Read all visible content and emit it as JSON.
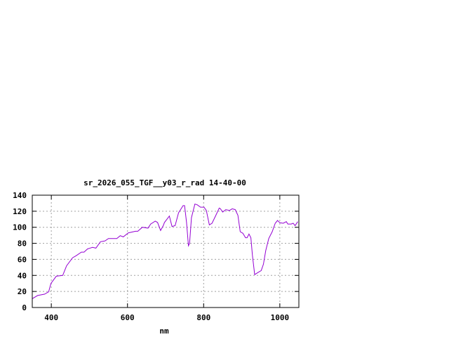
{
  "chart_data": {
    "type": "line",
    "title": "sr_2026_055_TGF__y03_r_rad 14-40-00",
    "xlabel": "nm",
    "ylabel": "",
    "xlim": [
      350,
      1050
    ],
    "ylim": [
      0,
      140
    ],
    "xticks": [
      400,
      600,
      800,
      1000
    ],
    "yticks": [
      0,
      20,
      40,
      60,
      80,
      100,
      120,
      140
    ],
    "grid": true,
    "line_color": "#9400d3",
    "series": [
      {
        "x": [
          350,
          364,
          382,
          393,
          399,
          413,
          430,
          440,
          456,
          465,
          479,
          486,
          495,
          508,
          517,
          529,
          541,
          550,
          572,
          581,
          589,
          602,
          621,
          627,
          639,
          654,
          661,
          673,
          679,
          687,
          694,
          697,
          710,
          717,
          725,
          734,
          746,
          750,
          755,
          760,
          763,
          768,
          777,
          783,
          792,
          801,
          807,
          815,
          822,
          832,
          841,
          844,
          850,
          858,
          868,
          875,
          883,
          890,
          896,
          903,
          910,
          914,
          919,
          924,
          928,
          934,
          942,
          951,
          957,
          963,
          971,
          980,
          988,
          994,
          1000,
          1009,
          1017,
          1021,
          1030,
          1035,
          1040,
          1047
        ],
        "y": [
          11,
          15,
          16.6,
          19.5,
          30,
          39,
          40,
          52,
          62,
          64.5,
          69,
          69,
          73,
          75,
          74,
          82,
          83,
          86,
          86,
          89.5,
          88,
          93,
          95,
          95,
          100,
          99,
          104,
          107.6,
          106,
          96,
          102,
          106,
          114,
          101,
          102,
          118,
          127,
          127,
          106,
          77,
          80,
          112,
          129,
          128,
          125,
          125,
          121,
          103,
          105,
          115,
          124,
          123,
          119,
          122,
          121,
          123,
          122,
          115,
          94.5,
          92.5,
          87,
          87,
          91.6,
          87,
          65,
          41,
          43.5,
          46,
          54,
          71,
          86,
          94.5,
          105,
          108.5,
          105.6,
          105,
          107,
          104,
          104,
          105,
          102,
          107
        ]
      }
    ]
  }
}
